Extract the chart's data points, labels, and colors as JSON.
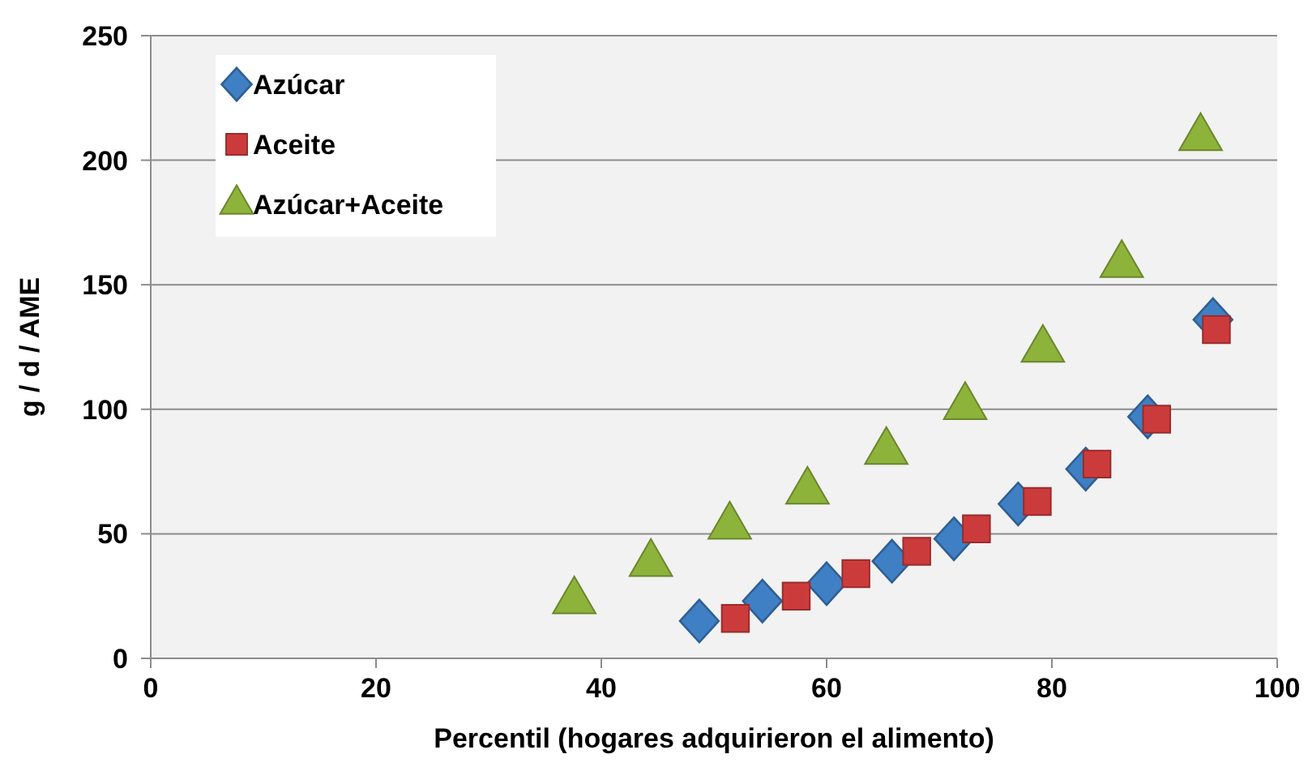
{
  "chart_data": {
    "type": "scatter",
    "xlabel": "Percentil (hogares adquirieron el alimento)",
    "ylabel": "g / d / AME",
    "xlim": [
      0,
      100
    ],
    "xticks": [
      0,
      20,
      40,
      60,
      80,
      100
    ],
    "ylim": [
      0,
      250
    ],
    "yticks": [
      0,
      50,
      100,
      150,
      200,
      250
    ],
    "grid": "y",
    "legend": "top left",
    "series": [
      {
        "name": "Azúcar",
        "color": "#3f7fc4",
        "marker": "diamond",
        "x": [
          48.7,
          54.3,
          60.0,
          65.8,
          71.3,
          77.0,
          83.0,
          88.5,
          94.3
        ],
        "values": [
          15,
          23,
          30,
          39,
          48,
          62,
          76,
          97,
          136
        ]
      },
      {
        "name": "Aceite",
        "color": "#cc3b3b",
        "marker": "square",
        "x": [
          51.9,
          57.3,
          62.6,
          68.0,
          73.3,
          78.7,
          84.0,
          89.3,
          94.6
        ],
        "values": [
          16,
          25,
          34,
          43,
          52,
          63,
          78,
          96,
          132
        ]
      },
      {
        "name": "Azúcar+Aceite",
        "color": "#8db33a",
        "marker": "triangle",
        "x": [
          37.6,
          44.4,
          51.4,
          58.3,
          65.3,
          72.3,
          79.2,
          86.2,
          93.2
        ],
        "values": [
          23,
          38,
          53,
          67,
          83,
          101,
          124,
          158,
          209
        ]
      }
    ]
  }
}
